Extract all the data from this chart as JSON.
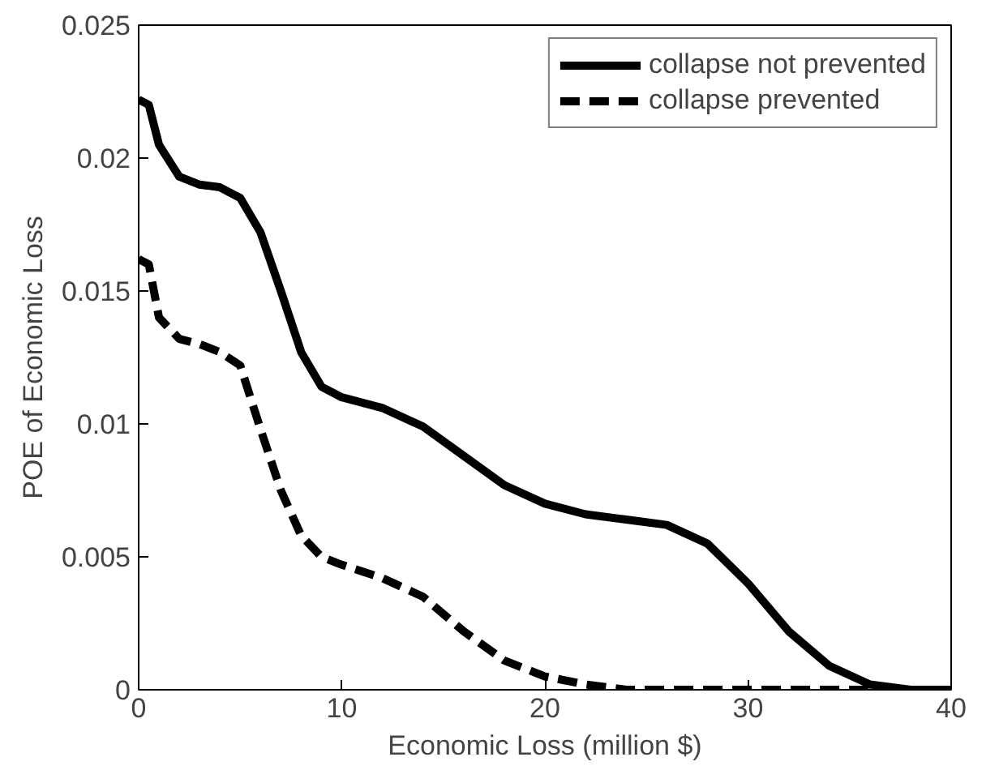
{
  "chart_data": {
    "type": "line",
    "xlabel": "Economic Loss (million $)",
    "ylabel": "POE of Economic Loss",
    "xlim": [
      0,
      40
    ],
    "xticks": [
      0,
      10,
      20,
      30,
      40
    ],
    "ylim": [
      0,
      0.025
    ],
    "yticks": [
      0,
      0.005,
      0.01,
      0.015,
      0.02,
      0.025
    ],
    "grid": false,
    "legend": "top right",
    "marker": "none",
    "series": [
      {
        "name": "collapse not prevented",
        "color": "#000000",
        "line_style": "solid",
        "x": [
          0,
          0.5,
          1,
          2,
          3,
          4,
          5,
          6,
          7,
          8,
          9,
          10,
          12,
          14,
          16,
          18,
          20,
          22,
          24,
          26,
          28,
          30,
          32,
          34,
          36,
          38,
          40
        ],
        "values": [
          0.0222,
          0.022,
          0.0205,
          0.0193,
          0.019,
          0.0189,
          0.0185,
          0.0172,
          0.015,
          0.0127,
          0.0114,
          0.011,
          0.0106,
          0.0099,
          0.0088,
          0.0077,
          0.007,
          0.0066,
          0.0064,
          0.0062,
          0.0055,
          0.004,
          0.0022,
          0.0009,
          0.0002,
          0,
          0
        ]
      },
      {
        "name": "collapse prevented",
        "color": "#000000",
        "line_style": "dashed",
        "x": [
          0,
          0.5,
          1,
          2,
          3,
          4,
          5,
          6,
          7,
          8,
          9,
          10,
          12,
          14,
          16,
          18,
          20,
          22,
          24,
          26,
          40
        ],
        "values": [
          0.0162,
          0.016,
          0.014,
          0.0132,
          0.013,
          0.0127,
          0.0122,
          0.0098,
          0.0075,
          0.0058,
          0.005,
          0.0047,
          0.0042,
          0.0035,
          0.0022,
          0.0011,
          0.0005,
          0.0002,
          0,
          0,
          0
        ]
      }
    ]
  }
}
